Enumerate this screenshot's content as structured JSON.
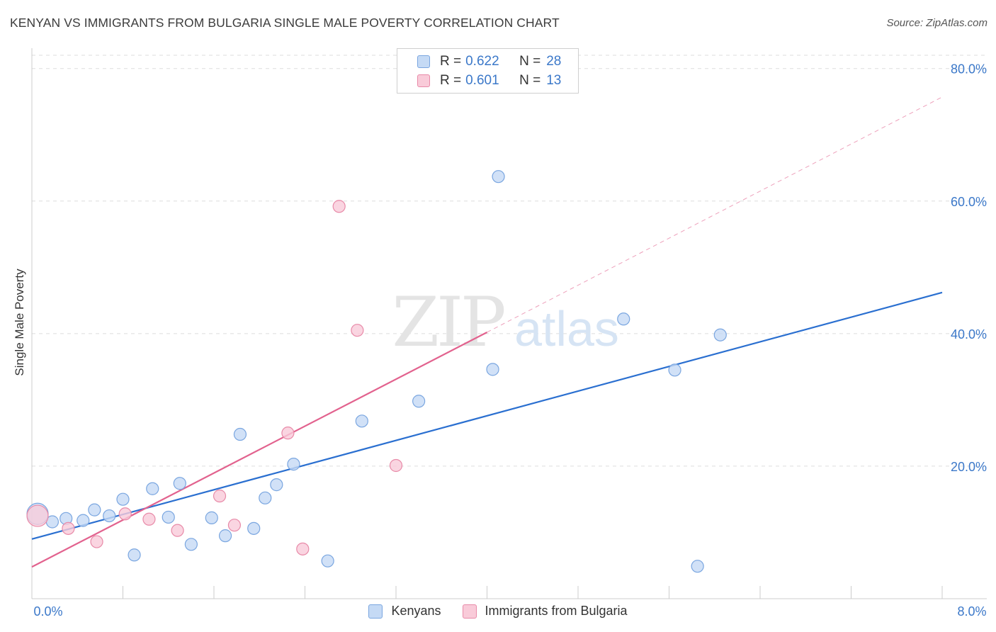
{
  "header": {
    "title": "KENYAN VS IMMIGRANTS FROM BULGARIA SINGLE MALE POVERTY CORRELATION CHART",
    "source": "Source: ZipAtlas.com"
  },
  "legend": {
    "rows": [
      {
        "r_label": "R =",
        "r_value": "0.622",
        "n_label": "N =",
        "n_value": "28"
      },
      {
        "r_label": "R =",
        "r_value": "0.601",
        "n_label": "N =",
        "n_value": "13"
      }
    ]
  },
  "bottom_legend": [
    "Kenyans",
    "Immigrants from Bulgaria"
  ],
  "colors": {
    "kenyans_fill": "#c5daf5",
    "kenyans_stroke": "#7aa6e0",
    "kenyans_line": "#2a6fd0",
    "bulgaria_fill": "#f9cbd9",
    "bulgaria_stroke": "#e88aa8",
    "bulgaria_line": "#e2628e",
    "axis_text": "#3b78c9",
    "grid": "#dddddd"
  },
  "chart_data": {
    "type": "scatter",
    "title": "KENYAN VS IMMIGRANTS FROM BULGARIA SINGLE MALE POVERTY CORRELATION CHART",
    "xlabel": "",
    "ylabel": "Single Male Poverty",
    "xlim": [
      0,
      8
    ],
    "ylim": [
      0,
      82
    ],
    "x_tick_labels": [
      "0.0%",
      "8.0%"
    ],
    "y_ticks": [
      20,
      40,
      60,
      80
    ],
    "y_tick_labels": [
      "20.0%",
      "40.0%",
      "60.0%",
      "80.0%"
    ],
    "watermark": [
      "ZIP",
      "atlas"
    ],
    "series": [
      {
        "name": "Kenyans",
        "r": 0.622,
        "n": 28,
        "points": [
          [
            0.05,
            12.8
          ],
          [
            0.18,
            11.6
          ],
          [
            0.3,
            12.1
          ],
          [
            0.45,
            11.8
          ],
          [
            0.55,
            13.4
          ],
          [
            0.68,
            12.5
          ],
          [
            0.8,
            15.0
          ],
          [
            0.9,
            6.6
          ],
          [
            1.06,
            16.6
          ],
          [
            1.2,
            12.3
          ],
          [
            1.3,
            17.4
          ],
          [
            1.4,
            8.2
          ],
          [
            1.58,
            12.2
          ],
          [
            1.7,
            9.5
          ],
          [
            1.83,
            24.8
          ],
          [
            1.95,
            10.6
          ],
          [
            2.05,
            15.2
          ],
          [
            2.15,
            17.2
          ],
          [
            2.3,
            20.3
          ],
          [
            2.6,
            5.7
          ],
          [
            2.9,
            26.8
          ],
          [
            3.4,
            29.8
          ],
          [
            4.05,
            34.6
          ],
          [
            4.1,
            63.7
          ],
          [
            5.2,
            42.2
          ],
          [
            5.65,
            34.5
          ],
          [
            5.85,
            4.9
          ],
          [
            6.05,
            39.8
          ]
        ],
        "trend": {
          "x": [
            0,
            8
          ],
          "y": [
            9.0,
            46.2
          ]
        }
      },
      {
        "name": "Immigrants from Bulgaria",
        "r": 0.601,
        "n": 13,
        "points": [
          [
            0.05,
            12.5
          ],
          [
            0.32,
            10.6
          ],
          [
            0.57,
            8.6
          ],
          [
            0.82,
            12.8
          ],
          [
            1.03,
            12.0
          ],
          [
            1.28,
            10.3
          ],
          [
            1.65,
            15.5
          ],
          [
            1.78,
            11.1
          ],
          [
            2.25,
            25.0
          ],
          [
            2.38,
            7.5
          ],
          [
            2.7,
            59.2
          ],
          [
            2.86,
            40.5
          ],
          [
            3.2,
            20.1
          ]
        ],
        "trend": {
          "x": [
            0,
            4.0
          ],
          "y": [
            4.8,
            40.2
          ]
        },
        "trend_extension": {
          "x": [
            4.0,
            8.0
          ],
          "y": [
            40.2,
            75.7
          ]
        }
      }
    ]
  }
}
